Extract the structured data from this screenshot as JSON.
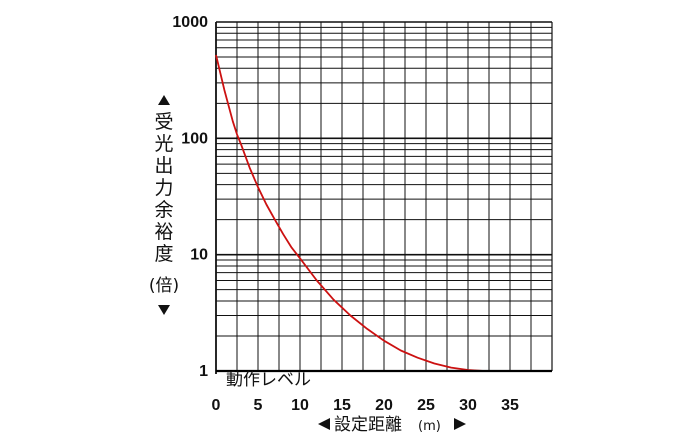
{
  "chart_data": {
    "type": "line",
    "title": "",
    "xlabel": "設定距離",
    "xunit": "(m)",
    "ylabel_chars": [
      "受",
      "光",
      "出",
      "力",
      "余",
      "裕",
      "度"
    ],
    "ylabel_unit": "(倍)",
    "xlim": [
      0,
      40
    ],
    "ylim": [
      1,
      1000
    ],
    "yscale": "log",
    "grid": true,
    "x_ticks": [
      0,
      5,
      10,
      15,
      20,
      25,
      30,
      35
    ],
    "y_ticks": [
      1,
      10,
      100,
      1000
    ],
    "annotation": "動作レベル",
    "series": [
      {
        "color": "#cc1111",
        "x": [
          0,
          1,
          2,
          2.5,
          3,
          4,
          5,
          6,
          7,
          8,
          9,
          10,
          12,
          14,
          16,
          18,
          20,
          22,
          24,
          26,
          28,
          30,
          31,
          32
        ],
        "y": [
          520,
          260,
          140,
          108,
          88,
          56,
          38,
          27,
          20,
          15,
          11.5,
          9.3,
          6.0,
          4.1,
          3.0,
          2.3,
          1.82,
          1.5,
          1.3,
          1.16,
          1.07,
          1.02,
          1.01,
          1.0
        ]
      }
    ],
    "reference_line": {
      "y": 1,
      "color": "#000000"
    }
  }
}
